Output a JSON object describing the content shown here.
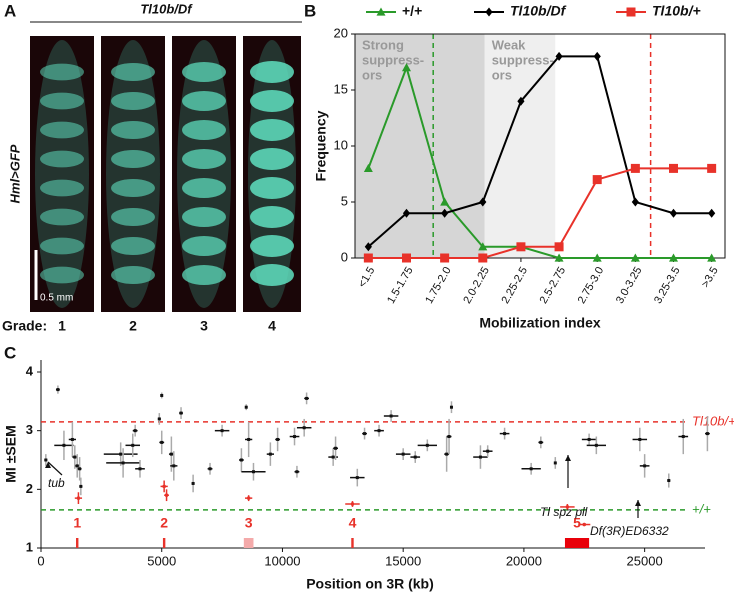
{
  "panel_labels": [
    "A",
    "B",
    "C"
  ],
  "image_panel": {
    "title": "Tl10b/Df",
    "ylabel": "Hml>GFP",
    "scale_bar": "0.5 mm",
    "grade_label": "Grade:",
    "grades": [
      "1",
      "2",
      "3",
      "4"
    ]
  },
  "chart_data": [
    {
      "type": "line",
      "categories": [
        "<1.5",
        "1.5-1.75",
        "1.75-2.0",
        "2.0-2.25",
        "2.25-2.5",
        "2.5-2.75",
        "2.75-3.0",
        "3.0-3.25",
        "3.25-3.5",
        ">3.5"
      ],
      "series": [
        {
          "name": "+/+",
          "color": "#2a9a2a",
          "marker": "triangle",
          "values": [
            8,
            17,
            5,
            1,
            1,
            0,
            0,
            0,
            0,
            0
          ]
        },
        {
          "name": "Tl10b/Df",
          "color": "#000000",
          "marker": "diamond",
          "values": [
            1,
            4,
            4,
            5,
            14,
            18,
            18,
            5,
            4,
            4
          ]
        },
        {
          "name": "Tl10b/+",
          "color": "#e8322a",
          "marker": "square",
          "values": [
            0,
            0,
            0,
            0,
            1,
            1,
            7,
            8,
            8,
            8
          ]
        }
      ],
      "ylim": [
        0,
        20
      ],
      "yticks": [
        0,
        5,
        10,
        15,
        20
      ],
      "xlabel": "Mobilization index",
      "ylabel": "Frequency",
      "bands": [
        {
          "lines": [
            "Strong",
            "suppress-",
            "ors"
          ],
          "from": -0.35,
          "to": 3.05,
          "color": "#d6d6d6"
        },
        {
          "lines": [
            "Weak",
            "suppress-",
            "ors"
          ],
          "from": 3.05,
          "to": 4.9,
          "color": "#efefef"
        }
      ],
      "ref_lines": [
        {
          "x": 1.7,
          "color": "#2a9a2a"
        },
        {
          "x": 7.4,
          "color": "#e8322a"
        }
      ]
    },
    {
      "type": "errorbar-scatter",
      "xlim": [
        0,
        27500
      ],
      "xticks": [
        0,
        5000,
        10000,
        15000,
        20000,
        25000
      ],
      "ylim": [
        1,
        4
      ],
      "yticks": [
        1,
        2,
        3,
        4
      ],
      "xlabel": "Position on 3R (kb)",
      "ylabel": "MI ±SEM",
      "errcolor": "#aaaaaa",
      "series": [
        {
          "color": "#111111",
          "x": [
            200,
            700,
            950,
            1300,
            1400,
            1500,
            1600,
            1650,
            3300,
            3400,
            3800,
            3900,
            4100,
            4900,
            5000,
            5000,
            5400,
            5500,
            5800,
            6300,
            7000,
            7500,
            8300,
            8500,
            8600,
            8800,
            9500,
            9800,
            10500,
            10600,
            10900,
            11000,
            12100,
            12200,
            13100,
            13400,
            14000,
            14500,
            15000,
            15500,
            16000,
            16800,
            16900,
            17000,
            18200,
            18500,
            19200,
            20300,
            20700,
            21300,
            22700,
            23000,
            24800,
            25000,
            26000,
            26600,
            27600
          ],
          "values": [
            2.5,
            3.7,
            2.75,
            2.85,
            2.55,
            2.4,
            2.35,
            2.05,
            2.6,
            2.45,
            2.75,
            3.0,
            2.35,
            3.2,
            2.8,
            3.6,
            2.6,
            2.4,
            3.3,
            2.1,
            2.35,
            3.0,
            2.5,
            3.4,
            2.85,
            2.3,
            2.6,
            2.85,
            2.9,
            2.3,
            3.05,
            3.55,
            2.55,
            2.7,
            2.2,
            2.95,
            3.0,
            3.25,
            2.6,
            2.55,
            2.75,
            2.6,
            2.9,
            3.4,
            2.55,
            2.65,
            2.95,
            2.35,
            2.8,
            2.45,
            2.85,
            2.75,
            2.85,
            2.4,
            2.15,
            2.9,
            2.95
          ],
          "xerr": [
            60,
            80,
            400,
            150,
            100,
            80,
            80,
            60,
            700,
            700,
            300,
            100,
            200,
            60,
            100,
            40,
            100,
            150,
            80,
            60,
            100,
            300,
            100,
            50,
            150,
            500,
            150,
            100,
            200,
            100,
            300,
            100,
            200,
            100,
            300,
            100,
            200,
            300,
            300,
            200,
            400,
            100,
            100,
            50,
            300,
            200,
            200,
            400,
            100,
            50,
            300,
            400,
            300,
            200,
            60,
            200,
            100
          ],
          "yerr": [
            0.1,
            0.07,
            0.25,
            0.3,
            0.2,
            0.2,
            0.2,
            0.15,
            0.2,
            0.25,
            0.2,
            0.1,
            0.15,
            0.1,
            0.2,
            0.05,
            0.3,
            0.25,
            0.1,
            0.15,
            0.1,
            0.1,
            0.2,
            0.05,
            0.3,
            0.15,
            0.2,
            0.2,
            0.15,
            0.1,
            0.15,
            0.1,
            0.15,
            0.2,
            0.15,
            0.1,
            0.1,
            0.1,
            0.1,
            0.1,
            0.1,
            0.3,
            0.3,
            0.1,
            0.2,
            0.1,
            0.1,
            0.1,
            0.1,
            0.1,
            0.1,
            0.15,
            0.2,
            0.2,
            0.12,
            0.3,
            0.3
          ]
        },
        {
          "color": "#e8322a",
          "x": [
            1550,
            5100,
            5200,
            8600,
            12900,
            21800,
            22500
          ],
          "values": [
            1.85,
            2.05,
            1.9,
            1.85,
            1.75,
            1.7,
            1.4
          ],
          "xerr": [
            150,
            150,
            100,
            150,
            300,
            300,
            250
          ],
          "yerr": [
            0.1,
            0.1,
            0.1,
            0.05,
            0.05,
            0.05,
            0.03
          ]
        }
      ],
      "ref_lines": [
        {
          "y": 3.15,
          "label": "Tl10b/+",
          "color": "#e8322a"
        },
        {
          "y": 1.65,
          "label": "+/+",
          "color": "#2a9a2a"
        }
      ],
      "regions": [
        {
          "label": "1",
          "start": 1450,
          "end": 1550,
          "color": "#e8322a"
        },
        {
          "label": "2",
          "start": 5050,
          "end": 5150,
          "color": "#e8322a"
        },
        {
          "label": "3",
          "start": 8400,
          "end": 8800,
          "color": "#f4aaaa"
        },
        {
          "label": "4",
          "start": 12850,
          "end": 12950,
          "color": "#e8322a"
        },
        {
          "label": "5",
          "start": 21700,
          "end": 22700,
          "color": "#e8000a"
        }
      ],
      "annotations": [
        "tub",
        "Tl spz pll",
        "Df(3R)ED6332"
      ]
    }
  ]
}
